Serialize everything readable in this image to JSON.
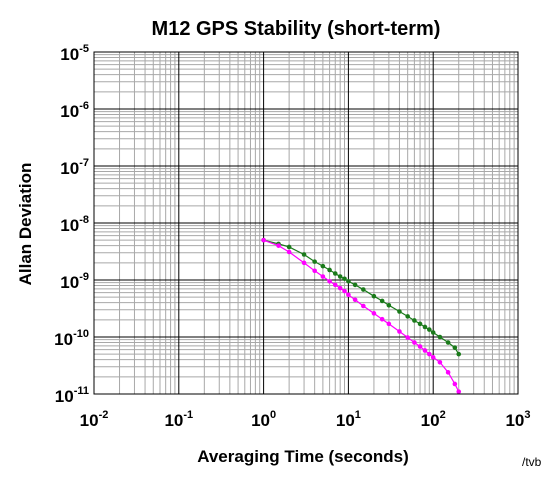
{
  "chart_data": {
    "type": "line",
    "title": "M12 GPS Stability (short-term)",
    "xlabel": "Averaging Time (seconds)",
    "ylabel": "Allan Deviation",
    "x_scale": "log",
    "y_scale": "log",
    "xlim": [
      0.01,
      1000
    ],
    "ylim": [
      1e-11,
      1e-05
    ],
    "grid": true,
    "x_ticks": [
      {
        "base": "10",
        "exp": "-2",
        "value": 0.01
      },
      {
        "base": "10",
        "exp": "-1",
        "value": 0.1
      },
      {
        "base": "10",
        "exp": "0",
        "value": 1
      },
      {
        "base": "10",
        "exp": "1",
        "value": 10
      },
      {
        "base": "10",
        "exp": "2",
        "value": 100
      },
      {
        "base": "10",
        "exp": "3",
        "value": 1000
      }
    ],
    "y_ticks": [
      {
        "base": "10",
        "exp": "-11",
        "value": 1e-11
      },
      {
        "base": "10",
        "exp": "-10",
        "value": 1e-10
      },
      {
        "base": "10",
        "exp": "-9",
        "value": 1e-09
      },
      {
        "base": "10",
        "exp": "-8",
        "value": 1e-08
      },
      {
        "base": "10",
        "exp": "-7",
        "value": 1e-07
      },
      {
        "base": "10",
        "exp": "-6",
        "value": 1e-06
      },
      {
        "base": "10",
        "exp": "-5",
        "value": 1e-05
      }
    ],
    "series": [
      {
        "color": "#1a7a1a",
        "x": [
          1,
          1.5,
          2,
          3,
          4,
          5,
          6,
          7,
          8,
          9,
          10,
          12,
          15,
          20,
          25,
          30,
          40,
          50,
          60,
          70,
          80,
          90,
          100,
          120,
          150,
          180,
          200
        ],
        "y": [
          5e-09,
          4.3e-09,
          3.8e-09,
          2.8e-09,
          2.1e-09,
          1.75e-09,
          1.5e-09,
          1.3e-09,
          1.15e-09,
          1.05e-09,
          9.5e-10,
          8.2e-10,
          6.8e-10,
          5.2e-10,
          4.3e-10,
          3.6e-10,
          2.8e-10,
          2.3e-10,
          1.95e-10,
          1.7e-10,
          1.5e-10,
          1.35e-10,
          1.2e-10,
          1e-10,
          8e-11,
          6.5e-11,
          5e-11
        ]
      },
      {
        "color": "#ff00ff",
        "x": [
          1,
          1.5,
          2,
          3,
          4,
          5,
          6,
          7,
          8,
          9,
          10,
          12,
          15,
          20,
          25,
          30,
          40,
          50,
          60,
          70,
          80,
          90,
          100,
          120,
          150,
          180,
          200
        ],
        "y": [
          5e-09,
          4e-09,
          3.1e-09,
          2e-09,
          1.45e-09,
          1.15e-09,
          9.5e-10,
          8.2e-10,
          7.2e-10,
          6.4e-10,
          5.5e-10,
          4.5e-10,
          3.5e-10,
          2.6e-10,
          2.05e-10,
          1.7e-10,
          1.25e-10,
          9.8e-11,
          8e-11,
          6.8e-11,
          5.8e-11,
          5e-11,
          4.4e-11,
          3.6e-11,
          2.4e-11,
          1.5e-11,
          1.1e-11
        ]
      }
    ]
  },
  "credit": "/tvb"
}
